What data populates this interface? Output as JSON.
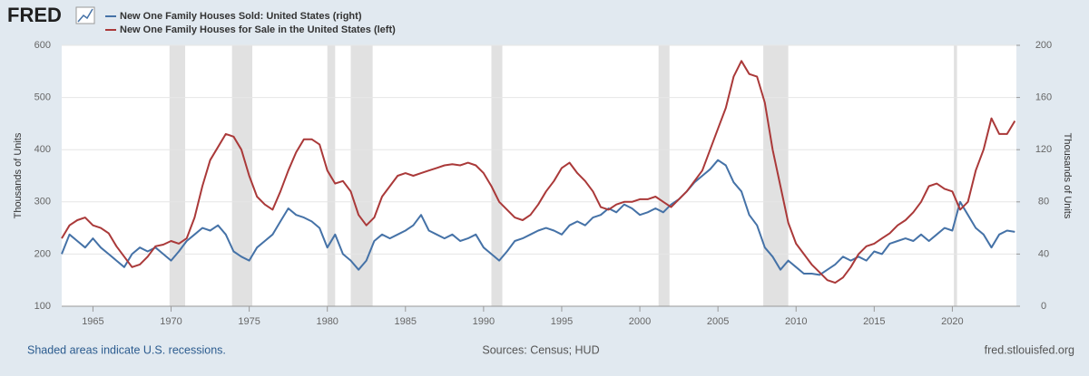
{
  "chart_data": {
    "type": "line",
    "logo": "FRED",
    "ylabel": "Thousands of Units",
    "y2label": "Thousands of Units",
    "notes": [
      "Shaded areas indicate U.S. recessions.",
      "Sources: Census; HUD",
      "fred.stlouisfed.org"
    ],
    "xlim": [
      1963,
      2024.1
    ],
    "xticks": [
      1965,
      1970,
      1975,
      1980,
      1985,
      1990,
      1995,
      2000,
      2005,
      2010,
      2015,
      2020
    ],
    "ylim": [
      100,
      600
    ],
    "yticks": [
      100,
      200,
      300,
      400,
      500,
      600
    ],
    "y2lim": [
      0,
      200
    ],
    "y2ticks": [
      0,
      40,
      80,
      120,
      160,
      200
    ],
    "grid": true,
    "recession_color": "#e1e1e1",
    "recessions": [
      [
        1969.9,
        1970.9
      ],
      [
        1973.9,
        1975.2
      ],
      [
        1980.0,
        1980.5
      ],
      [
        1981.5,
        1982.9
      ],
      [
        1990.5,
        1991.2
      ],
      [
        2001.2,
        2001.9
      ],
      [
        2007.9,
        2009.5
      ],
      [
        2020.1,
        2020.3
      ]
    ],
    "x": [
      1963,
      1963.5,
      1964,
      1964.5,
      1965,
      1965.5,
      1966,
      1966.5,
      1967,
      1967.5,
      1968,
      1968.5,
      1969,
      1969.5,
      1970,
      1970.5,
      1971,
      1971.5,
      1972,
      1972.5,
      1973,
      1973.5,
      1974,
      1974.5,
      1975,
      1975.5,
      1976,
      1976.5,
      1977,
      1977.5,
      1978,
      1978.5,
      1979,
      1979.5,
      1980,
      1980.5,
      1981,
      1981.5,
      1982,
      1982.5,
      1983,
      1983.5,
      1984,
      1984.5,
      1985,
      1985.5,
      1986,
      1986.5,
      1987,
      1987.5,
      1988,
      1988.5,
      1989,
      1989.5,
      1990,
      1990.5,
      1991,
      1991.5,
      1992,
      1992.5,
      1993,
      1993.5,
      1994,
      1994.5,
      1995,
      1995.5,
      1996,
      1996.5,
      1997,
      1997.5,
      1998,
      1998.5,
      1999,
      1999.5,
      2000,
      2000.5,
      2001,
      2001.5,
      2002,
      2002.5,
      2003,
      2003.5,
      2004,
      2004.5,
      2005,
      2005.5,
      2006,
      2006.5,
      2007,
      2007.5,
      2008,
      2008.5,
      2009,
      2009.5,
      2010,
      2010.5,
      2011,
      2011.5,
      2012,
      2012.5,
      2013,
      2013.5,
      2014,
      2014.5,
      2015,
      2015.5,
      2016,
      2016.5,
      2017,
      2017.5,
      2018,
      2018.5,
      2019,
      2019.5,
      2020,
      2020.5,
      2021,
      2021.5,
      2022,
      2022.5,
      2023,
      2023.5,
      2024
    ],
    "series": [
      {
        "name": "New One Family Houses Sold: United States (right)",
        "color": "#4572a7",
        "axis": "y2",
        "values": [
          40,
          55,
          50,
          45,
          52,
          45,
          40,
          35,
          30,
          40,
          45,
          42,
          45,
          40,
          35,
          42,
          50,
          55,
          60,
          58,
          62,
          55,
          42,
          38,
          35,
          45,
          50,
          55,
          65,
          75,
          70,
          68,
          65,
          60,
          45,
          55,
          40,
          35,
          28,
          35,
          50,
          55,
          52,
          55,
          58,
          62,
          70,
          58,
          55,
          52,
          55,
          50,
          52,
          55,
          45,
          40,
          35,
          42,
          50,
          52,
          55,
          58,
          60,
          58,
          55,
          62,
          65,
          62,
          68,
          70,
          75,
          72,
          78,
          75,
          70,
          72,
          75,
          72,
          78,
          82,
          88,
          95,
          100,
          105,
          112,
          108,
          95,
          88,
          70,
          62,
          45,
          38,
          28,
          35,
          30,
          25,
          25,
          24,
          28,
          32,
          38,
          35,
          38,
          35,
          42,
          40,
          48,
          50,
          52,
          50,
          55,
          50,
          55,
          60,
          58,
          80,
          70,
          60,
          55,
          45,
          55,
          58,
          57
        ]
      },
      {
        "name": "New One Family Houses for Sale in the United States (left)",
        "color": "#aa3939",
        "axis": "y",
        "values": [
          230,
          255,
          265,
          270,
          255,
          250,
          240,
          215,
          195,
          175,
          180,
          195,
          215,
          218,
          225,
          220,
          230,
          270,
          330,
          380,
          405,
          430,
          425,
          400,
          350,
          310,
          295,
          285,
          320,
          360,
          395,
          420,
          420,
          410,
          360,
          335,
          340,
          320,
          275,
          255,
          270,
          310,
          330,
          350,
          355,
          350,
          355,
          360,
          365,
          370,
          372,
          370,
          375,
          370,
          355,
          330,
          300,
          285,
          270,
          265,
          275,
          295,
          320,
          340,
          365,
          375,
          355,
          340,
          320,
          290,
          285,
          295,
          300,
          300,
          305,
          305,
          310,
          300,
          290,
          305,
          320,
          340,
          360,
          400,
          440,
          480,
          540,
          570,
          545,
          540,
          490,
          400,
          330,
          260,
          220,
          200,
          180,
          165,
          150,
          145,
          155,
          175,
          200,
          215,
          220,
          230,
          240,
          255,
          265,
          280,
          300,
          330,
          335,
          325,
          320,
          285,
          300,
          360,
          400,
          460,
          430,
          430,
          455
        ]
      }
    ]
  }
}
